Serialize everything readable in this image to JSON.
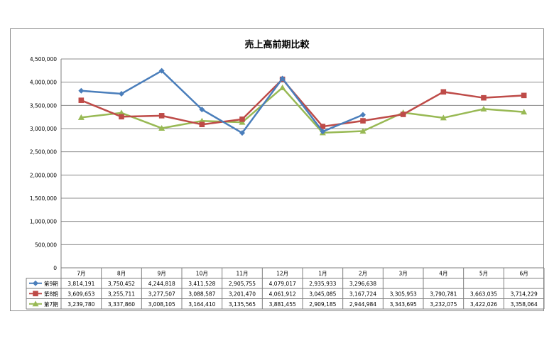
{
  "chart_data": {
    "type": "line",
    "title": "売上高前期比較",
    "categories": [
      "7月",
      "8月",
      "9月",
      "10月",
      "11月",
      "12月",
      "1月",
      "2月",
      "3月",
      "4月",
      "5月",
      "6月"
    ],
    "ylim": [
      0,
      4500000
    ],
    "yticks": [
      "0",
      "500,000",
      "1,000,000",
      "1,500,000",
      "2,000,000",
      "2,500,000",
      "3,000,000",
      "3,500,000",
      "4,000,000",
      "4,500,000"
    ],
    "grid": true,
    "legend": "data-table",
    "series": [
      {
        "name": "第9期",
        "color": "#4a7ebb",
        "marker": "diamond",
        "values": [
          3814191,
          3750452,
          4244818,
          3411528,
          2905755,
          4079017,
          2935933,
          3296638,
          null,
          null,
          null,
          null
        ],
        "labels": [
          "3,814,191",
          "3,750,452",
          "4,244,818",
          "3,411,528",
          "2,905,755",
          "4,079,017",
          "2,935,933",
          "3,296,638",
          "",
          "",
          "",
          ""
        ]
      },
      {
        "name": "第8期",
        "color": "#be4b48",
        "marker": "square",
        "values": [
          3609653,
          3255711,
          3277507,
          3088587,
          3201470,
          4061912,
          3045085,
          3167724,
          3305953,
          3790781,
          3663035,
          3714229
        ],
        "labels": [
          "3,609,653",
          "3,255,711",
          "3,277,507",
          "3,088,587",
          "3,201,470",
          "4,061,912",
          "3,045,085",
          "3,167,724",
          "3,305,953",
          "3,790,781",
          "3,663,035",
          "3,714,229"
        ]
      },
      {
        "name": "第7期",
        "color": "#98b954",
        "marker": "triangle",
        "values": [
          3239780,
          3337860,
          3008105,
          3164410,
          3135565,
          3881455,
          2909185,
          2944984,
          3343695,
          3232075,
          3422026,
          3358064
        ],
        "labels": [
          "3,239,780",
          "3,337,860",
          "3,008,105",
          "3,164,410",
          "3,135,565",
          "3,881,455",
          "2,909,185",
          "2,944,984",
          "3,343,695",
          "3,232,075",
          "3,422,026",
          "3,358,064"
        ]
      }
    ]
  }
}
